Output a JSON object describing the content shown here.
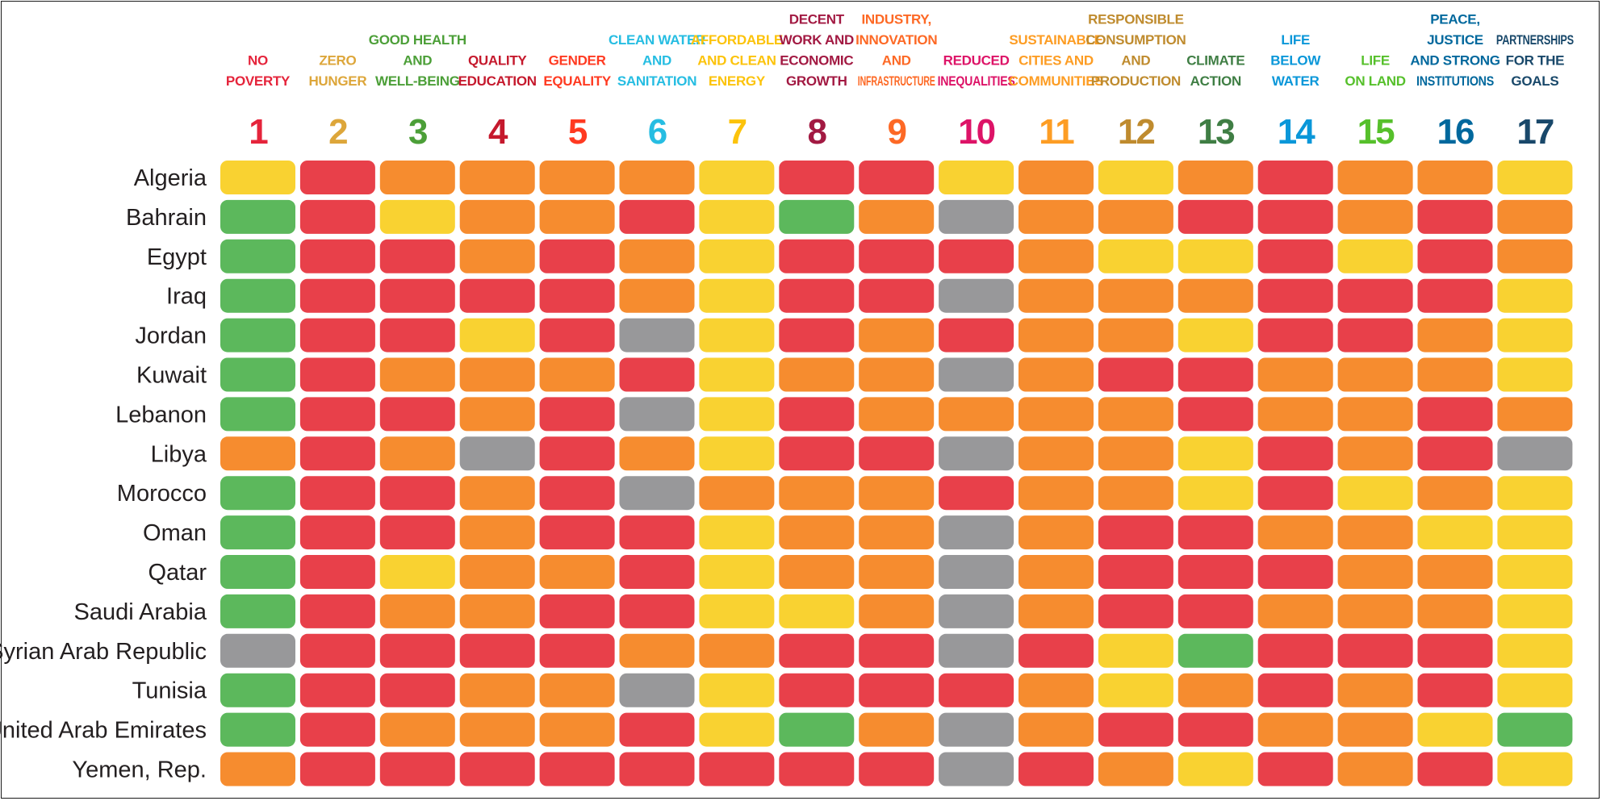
{
  "chart_data": {
    "type": "heatmap",
    "title": "",
    "legend": {
      "G": "#5cb85c",
      "Y": "#f9d231",
      "O": "#f68c2f",
      "R": "#e8404a",
      "N": "#98989a"
    },
    "columns": [
      {
        "number": "1",
        "lines": [
          "NO",
          "POVERTY"
        ],
        "color": "#e5243b"
      },
      {
        "number": "2",
        "lines": [
          "ZERO",
          "HUNGER"
        ],
        "color": "#dda63a"
      },
      {
        "number": "3",
        "lines": [
          "GOOD HEALTH",
          "AND",
          "WELL-BEING"
        ],
        "color": "#4c9f38"
      },
      {
        "number": "4",
        "lines": [
          "QUALITY",
          "EDUCATION"
        ],
        "color": "#c5192d"
      },
      {
        "number": "5",
        "lines": [
          "GENDER",
          "EQUALITY"
        ],
        "color": "#ff3a21"
      },
      {
        "number": "6",
        "lines": [
          "CLEAN WATER",
          "AND",
          "SANITATION"
        ],
        "color": "#26bde2"
      },
      {
        "number": "7",
        "lines": [
          "AFFORDABLE",
          "AND CLEAN",
          "ENERGY"
        ],
        "color": "#fcc30b"
      },
      {
        "number": "8",
        "lines": [
          "DECENT",
          "WORK AND",
          "ECONOMIC",
          "GROWTH"
        ],
        "color": "#a21942"
      },
      {
        "number": "9",
        "lines": [
          "INDUSTRY,",
          "INNOVATION",
          "AND",
          "INFRASTRUCTURE"
        ],
        "color": "#fd6925"
      },
      {
        "number": "10",
        "lines": [
          "REDUCED",
          "INEQUALITIES"
        ],
        "color": "#dd1367"
      },
      {
        "number": "11",
        "lines": [
          "SUSTAINABLE",
          "CITIES AND",
          "COMMUNITIES"
        ],
        "color": "#fd9d24"
      },
      {
        "number": "12",
        "lines": [
          "RESPONSIBLE",
          "CONSUMPTION",
          "AND",
          "PRODUCTION"
        ],
        "color": "#bf8b2e"
      },
      {
        "number": "13",
        "lines": [
          "CLIMATE",
          "ACTION"
        ],
        "color": "#3f7e44"
      },
      {
        "number": "14",
        "lines": [
          "LIFE",
          "BELOW",
          "WATER"
        ],
        "color": "#0a97d9"
      },
      {
        "number": "15",
        "lines": [
          "LIFE",
          "ON LAND"
        ],
        "color": "#56c02b"
      },
      {
        "number": "16",
        "lines": [
          "PEACE,",
          "JUSTICE",
          "AND STRONG",
          "INSTITUTIONS"
        ],
        "color": "#00689d"
      },
      {
        "number": "17",
        "lines": [
          "PARTNERSHIPS",
          "FOR THE",
          "GOALS"
        ],
        "color": "#19486a"
      }
    ],
    "rows": [
      {
        "country": "Algeria",
        "values": [
          "Y",
          "R",
          "O",
          "O",
          "O",
          "O",
          "Y",
          "R",
          "R",
          "Y",
          "O",
          "Y",
          "O",
          "R",
          "O",
          "O",
          "Y"
        ]
      },
      {
        "country": "Bahrain",
        "values": [
          "G",
          "R",
          "Y",
          "O",
          "O",
          "R",
          "Y",
          "G",
          "O",
          "N",
          "O",
          "O",
          "R",
          "R",
          "O",
          "R",
          "O"
        ]
      },
      {
        "country": "Egypt",
        "values": [
          "G",
          "R",
          "R",
          "O",
          "R",
          "O",
          "Y",
          "R",
          "R",
          "R",
          "O",
          "Y",
          "Y",
          "R",
          "Y",
          "R",
          "O"
        ]
      },
      {
        "country": "Iraq",
        "values": [
          "G",
          "R",
          "R",
          "R",
          "R",
          "O",
          "Y",
          "R",
          "R",
          "N",
          "O",
          "O",
          "O",
          "R",
          "R",
          "R",
          "Y"
        ]
      },
      {
        "country": "Jordan",
        "values": [
          "G",
          "R",
          "R",
          "Y",
          "R",
          "N",
          "Y",
          "R",
          "O",
          "R",
          "O",
          "O",
          "Y",
          "R",
          "R",
          "O",
          "Y"
        ]
      },
      {
        "country": "Kuwait",
        "values": [
          "G",
          "R",
          "O",
          "O",
          "O",
          "R",
          "Y",
          "O",
          "O",
          "N",
          "O",
          "R",
          "R",
          "O",
          "O",
          "O",
          "Y"
        ]
      },
      {
        "country": "Lebanon",
        "values": [
          "G",
          "R",
          "R",
          "O",
          "R",
          "N",
          "Y",
          "R",
          "O",
          "O",
          "O",
          "O",
          "R",
          "O",
          "O",
          "R",
          "O"
        ]
      },
      {
        "country": "Libya",
        "values": [
          "O",
          "R",
          "O",
          "N",
          "R",
          "O",
          "Y",
          "R",
          "R",
          "N",
          "O",
          "O",
          "Y",
          "R",
          "O",
          "R",
          "N"
        ]
      },
      {
        "country": "Morocco",
        "values": [
          "G",
          "R",
          "R",
          "O",
          "R",
          "N",
          "O",
          "O",
          "O",
          "R",
          "O",
          "O",
          "Y",
          "R",
          "Y",
          "O",
          "Y"
        ]
      },
      {
        "country": "Oman",
        "values": [
          "G",
          "R",
          "R",
          "O",
          "R",
          "R",
          "Y",
          "O",
          "O",
          "N",
          "O",
          "R",
          "R",
          "O",
          "O",
          "Y",
          "Y"
        ]
      },
      {
        "country": "Qatar",
        "values": [
          "G",
          "R",
          "Y",
          "O",
          "O",
          "R",
          "Y",
          "O",
          "O",
          "N",
          "O",
          "R",
          "R",
          "R",
          "O",
          "O",
          "Y"
        ]
      },
      {
        "country": "Saudi Arabia",
        "values": [
          "G",
          "R",
          "O",
          "O",
          "R",
          "R",
          "Y",
          "Y",
          "O",
          "N",
          "O",
          "R",
          "R",
          "O",
          "O",
          "O",
          "Y"
        ]
      },
      {
        "country": "Syrian Arab Republic",
        "values": [
          "N",
          "R",
          "R",
          "R",
          "R",
          "O",
          "O",
          "R",
          "R",
          "N",
          "R",
          "Y",
          "G",
          "R",
          "R",
          "R",
          "Y"
        ]
      },
      {
        "country": "Tunisia",
        "values": [
          "G",
          "R",
          "R",
          "O",
          "O",
          "N",
          "Y",
          "R",
          "R",
          "R",
          "O",
          "Y",
          "O",
          "R",
          "O",
          "R",
          "Y"
        ]
      },
      {
        "country": "United Arab Emirates",
        "values": [
          "G",
          "R",
          "O",
          "O",
          "O",
          "R",
          "Y",
          "G",
          "O",
          "N",
          "O",
          "R",
          "R",
          "O",
          "O",
          "Y",
          "G"
        ]
      },
      {
        "country": "Yemen, Rep.",
        "values": [
          "O",
          "R",
          "R",
          "R",
          "R",
          "R",
          "R",
          "R",
          "R",
          "N",
          "R",
          "O",
          "Y",
          "R",
          "O",
          "R",
          "Y"
        ]
      }
    ]
  }
}
